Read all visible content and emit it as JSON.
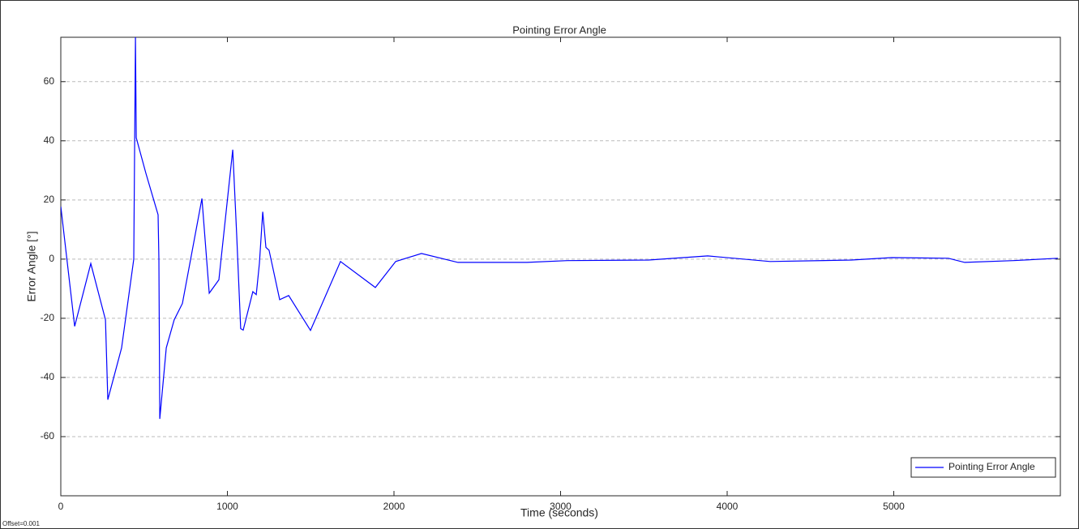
{
  "chart_data": {
    "type": "line",
    "title": "Pointing Error Angle",
    "x_label": "Time (seconds)",
    "y_label": "Error Angle [°]",
    "annotation": "Offset=0.001",
    "x": [
      0,
      83,
      180,
      268,
      282,
      365,
      438,
      448,
      453,
      511,
      584,
      589,
      594,
      633,
      681,
      730,
      847,
      891,
      949,
      1032,
      1056,
      1080,
      1095,
      1153,
      1173,
      1192,
      1212,
      1231,
      1250,
      1314,
      1368,
      1499,
      1679,
      1888,
      2010,
      2165,
      2384,
      2798,
      3041,
      3528,
      3883,
      4258,
      4745,
      4988,
      5328,
      5426,
      5718,
      5985
    ],
    "series": [
      {
        "name": "Pointing Error Angle",
        "color": "#0000ff",
        "values": [
          17.8,
          -22.7,
          -1.5,
          -20.5,
          -47.5,
          -30,
          0,
          75,
          41,
          29,
          15,
          0,
          -54,
          -30,
          -20.5,
          -15,
          20.5,
          -11.5,
          -7,
          37,
          8,
          -23.5,
          -24,
          -11,
          -12,
          -1.4,
          16,
          4,
          3,
          -13.7,
          -12.3,
          -24.1,
          -0.8,
          -9.6,
          -0.8,
          1.9,
          -1.1,
          -1.1,
          -0.5,
          -0.3,
          1.1,
          -0.8,
          -0.3,
          0.5,
          0.3,
          -1.1,
          -0.5,
          0.3
        ]
      }
    ],
    "xlim": [
      0,
      6000
    ],
    "ylim": [
      -80,
      75
    ],
    "xticks": [
      0,
      1000,
      2000,
      3000,
      4000,
      5000
    ],
    "yticks": [
      -60,
      -40,
      -20,
      0,
      20,
      40,
      60
    ],
    "grid": true,
    "legend": "lower right"
  }
}
